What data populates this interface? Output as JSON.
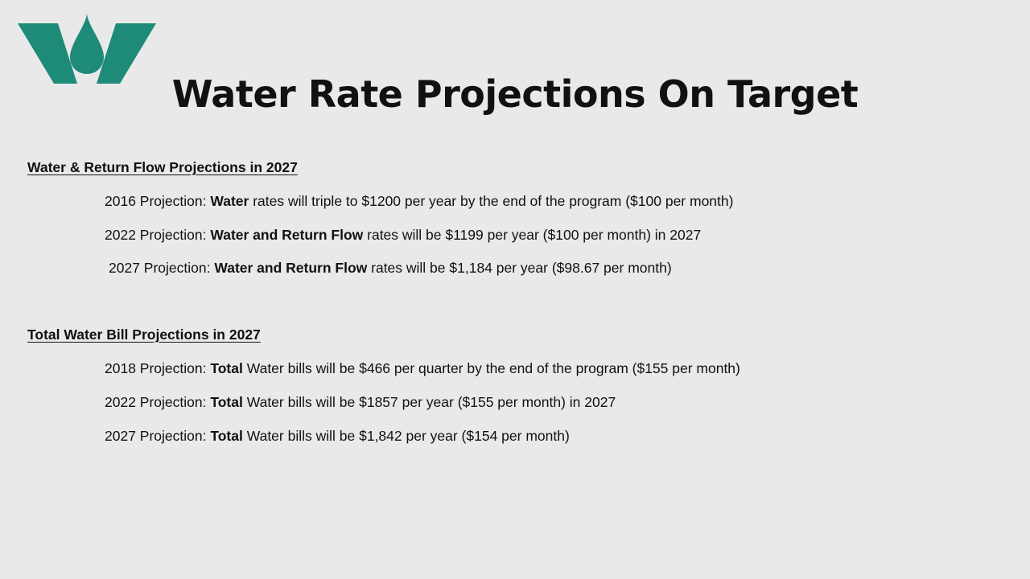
{
  "logo": {
    "icon": "water-drop-w-logo",
    "color": "#1e8a78"
  },
  "title": "Water Rate Projections On Target",
  "sections": [
    {
      "heading": "Water & Return Flow Projections in 2027",
      "lines": [
        {
          "prefix": "2016 Projection: ",
          "bold": "Water",
          "rest": " rates will triple to $1200 per year by the end of the program ($100 per month)"
        },
        {
          "prefix": "2022 Projection: ",
          "bold": "Water and Return Flow",
          "rest": " rates will be $1199 per year ($100 per month) in 2027"
        },
        {
          "prefix": "2027 Projection: ",
          "bold": "Water and Return Flow",
          "rest": " rates will be $1,184 per year ($98.67 per month)"
        }
      ]
    },
    {
      "heading": "Total Water Bill Projections in 2027",
      "lines": [
        {
          "prefix": "2018 Projection: ",
          "bold": "Total",
          "rest": " Water bills will be $466 per quarter by the end of the program ($155 per month)"
        },
        {
          "prefix": "2022 Projection: ",
          "bold": "Total",
          "rest": " Water bills will be $1857 per year ($155 per month) in 2027"
        },
        {
          "prefix": "2027 Projection: ",
          "bold": "Total",
          "rest": " Water bills will be $1,842 per year ($154 per month)"
        }
      ]
    }
  ]
}
